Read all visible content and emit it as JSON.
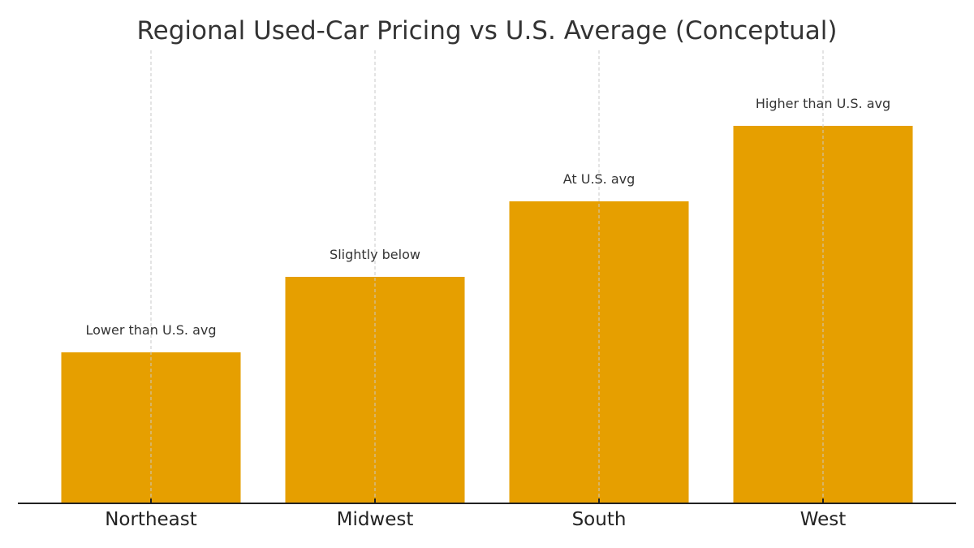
{
  "chart_data": {
    "type": "bar",
    "title": "Regional Used-Car Pricing vs U.S. Average (Conceptual)",
    "xlabel": "",
    "ylabel": "",
    "categories": [
      "Northeast",
      "Midwest",
      "South",
      "West"
    ],
    "values": [
      2,
      3,
      4,
      5
    ],
    "annotations": [
      "Lower than U.S. avg",
      "Slightly below",
      "At U.S. avg",
      "Higher than U.S. avg"
    ],
    "ylim": [
      0,
      6
    ],
    "y_axis_visible": false,
    "grid": "vertical dashed, x only",
    "bar_color": "#E69F00",
    "grid_color": "#c8c8c8",
    "axis_color": "#222222"
  }
}
